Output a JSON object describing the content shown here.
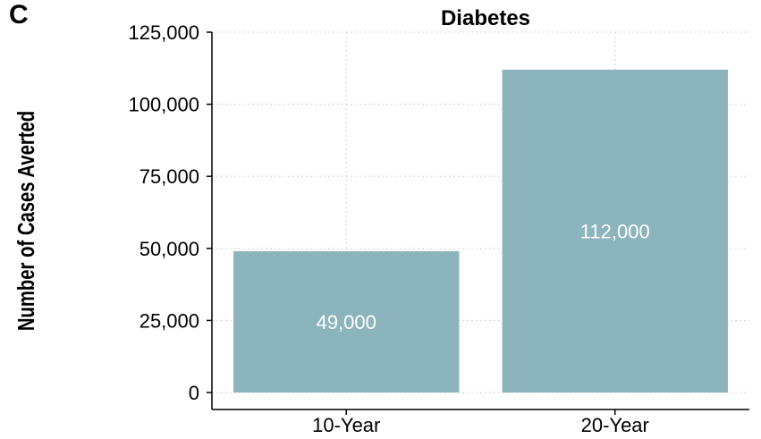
{
  "panel_label": "C",
  "chart_data": {
    "type": "bar",
    "title": "Diabetes",
    "xlabel": "",
    "ylabel": "Number of Cases Averted",
    "categories": [
      "10-Year",
      "20-Year"
    ],
    "values": [
      49000,
      112000
    ],
    "data_labels": [
      "49,000",
      "112,000"
    ],
    "yticks": [
      0,
      25000,
      50000,
      75000,
      100000,
      125000
    ],
    "ytick_labels": [
      "0",
      "25,000",
      "50,000",
      "75,000",
      "100,000",
      "125,000"
    ],
    "ylim": [
      0,
      125000
    ],
    "grid": true,
    "legend": "none",
    "bar_color": "#8cb4bd",
    "label_color": "#ffffff",
    "grid_color": "#d9d9d9"
  }
}
